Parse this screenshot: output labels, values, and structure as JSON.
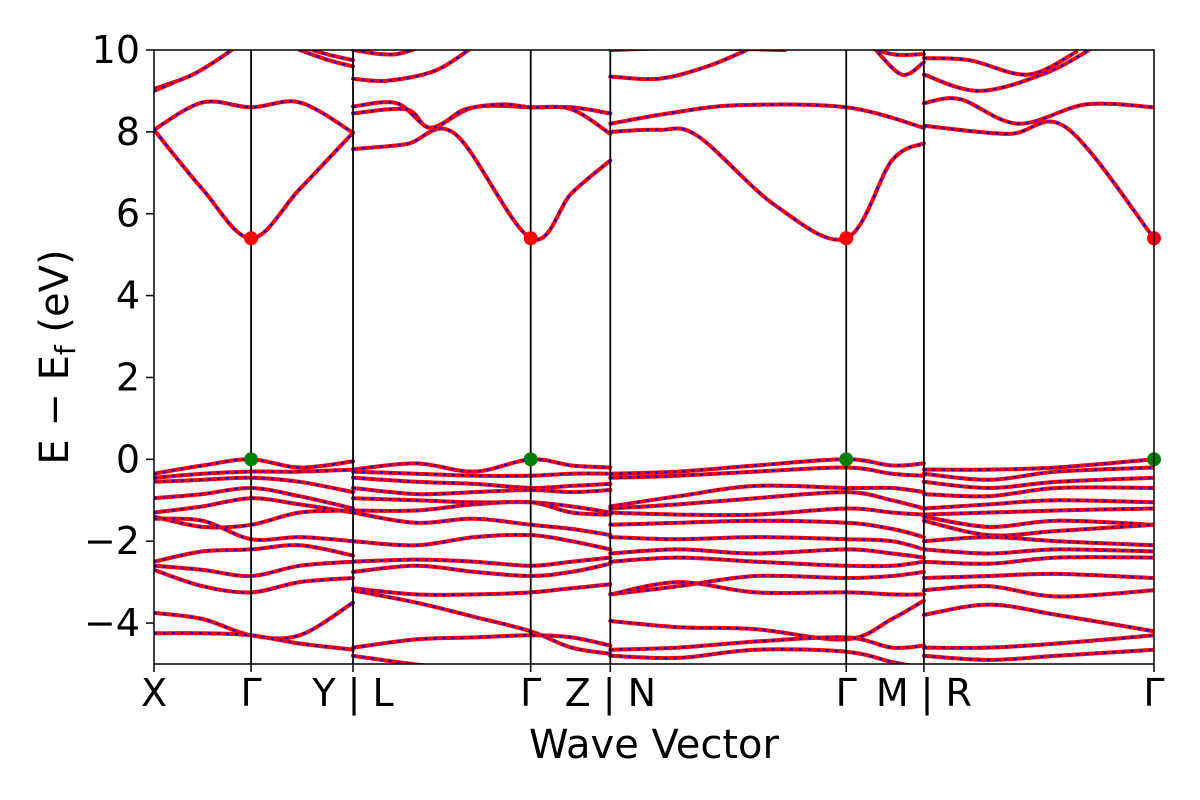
{
  "chart_data": {
    "type": "line",
    "title": "",
    "xlabel": "Wave Vector",
    "ylabel_main": "E − E",
    "ylabel_sub": "f",
    "ylabel_unit": " (eV)",
    "ylim": [
      -5,
      10
    ],
    "yticks": [
      {
        "value": -4,
        "label": "−4"
      },
      {
        "value": -2,
        "label": "−2"
      },
      {
        "value": 0,
        "label": "0"
      },
      {
        "value": 2,
        "label": "2"
      },
      {
        "value": 4,
        "label": "4"
      },
      {
        "value": 6,
        "label": "6"
      },
      {
        "value": 8,
        "label": "8"
      },
      {
        "value": 10,
        "label": "10"
      }
    ],
    "xlim": [
      0,
      10.3
    ],
    "kpoints": [
      {
        "pos": 0.0,
        "label": "X"
      },
      {
        "pos": 1.0,
        "label": "Γ"
      },
      {
        "pos": 2.05,
        "label": "Y | L"
      },
      {
        "pos": 3.88,
        "label": "Γ"
      },
      {
        "pos": 4.7,
        "label": "Z | N"
      },
      {
        "pos": 7.13,
        "label": "Γ"
      },
      {
        "pos": 7.93,
        "label": "M | R"
      },
      {
        "pos": 10.3,
        "label": "Γ"
      }
    ],
    "segment_boundaries": [
      2.05,
      4.7,
      7.93
    ],
    "gamma_lines": [
      1.0,
      3.88,
      7.13
    ],
    "colors": {
      "band_solid": "#ff0000",
      "band_dashed": "#0000ff",
      "cbm_marker": "#ff0000",
      "vbm_marker": "#008000"
    },
    "cbm_points": [
      {
        "x": 1.0,
        "y": 5.4
      },
      {
        "x": 3.88,
        "y": 5.4
      },
      {
        "x": 7.13,
        "y": 5.4
      },
      {
        "x": 10.3,
        "y": 5.4
      }
    ],
    "vbm_points": [
      {
        "x": 1.0,
        "y": 0.0
      },
      {
        "x": 3.88,
        "y": 0.0
      },
      {
        "x": 7.13,
        "y": 0.0
      },
      {
        "x": 10.3,
        "y": 0.0
      }
    ],
    "bands": [
      {
        "x": [
          0,
          0.5,
          1.0,
          1.5,
          2.05
        ],
        "y": [
          8.05,
          6.6,
          5.4,
          6.6,
          7.98
        ]
      },
      {
        "x": [
          0,
          0.5,
          1.0,
          1.5,
          2.05
        ],
        "y": [
          8.05,
          8.72,
          8.6,
          8.72,
          7.98
        ]
      },
      {
        "x": [
          0,
          0.4,
          0.8,
          1.0
        ],
        "y": [
          9.05,
          9.4,
          10.0,
          10.4
        ]
      },
      {
        "x": [
          0,
          0.2
        ],
        "y": [
          9.0,
          9.2
        ]
      },
      {
        "x": [
          1.5,
          1.8,
          2.05
        ],
        "y": [
          10.0,
          9.75,
          9.6
        ]
      },
      {
        "x": [
          1.3,
          1.7,
          2.05
        ],
        "y": [
          10.3,
          9.95,
          9.75
        ]
      },
      {
        "x": [
          2.05,
          2.6,
          3.1,
          3.88,
          4.3,
          4.7
        ],
        "y": [
          7.58,
          7.7,
          7.95,
          5.4,
          6.5,
          7.3
        ]
      },
      {
        "x": [
          2.05,
          2.6,
          2.85,
          3.3,
          3.88,
          4.3,
          4.7
        ],
        "y": [
          8.45,
          8.55,
          8.1,
          8.6,
          8.6,
          8.55,
          7.95
        ]
      },
      {
        "x": [
          2.05,
          2.5,
          2.85,
          3.2,
          3.6,
          3.88,
          4.3,
          4.7
        ],
        "y": [
          8.62,
          8.7,
          8.1,
          8.55,
          8.67,
          8.6,
          8.6,
          8.45
        ]
      },
      {
        "x": [
          2.05,
          2.4,
          2.9,
          3.3
        ],
        "y": [
          9.3,
          9.25,
          9.5,
          10.1
        ]
      },
      {
        "x": [
          2.05,
          2.5,
          3.0,
          3.4
        ],
        "y": [
          10.0,
          9.9,
          10.3,
          10.5
        ]
      },
      {
        "x": [
          4.7,
          5.2,
          5.6,
          6.4,
          7.13,
          7.6,
          7.93
        ],
        "y": [
          8.0,
          8.05,
          7.9,
          6.2,
          5.4,
          7.3,
          7.72
        ]
      },
      {
        "x": [
          4.7,
          5.3,
          6.0,
          7.13,
          7.93
        ],
        "y": [
          8.2,
          8.45,
          8.65,
          8.6,
          8.1
        ]
      },
      {
        "x": [
          4.7,
          5.2,
          5.7,
          6.2
        ],
        "y": [
          9.35,
          9.3,
          9.6,
          10.1
        ]
      },
      {
        "x": [
          4.7,
          5.5,
          6.5
        ],
        "y": [
          10.0,
          10.05,
          10.0
        ]
      },
      {
        "x": [
          7.4,
          7.7,
          7.93
        ],
        "y": [
          10.1,
          9.4,
          9.7
        ]
      },
      {
        "x": [
          7.2,
          7.6,
          7.93
        ],
        "y": [
          10.2,
          9.9,
          9.9
        ]
      },
      {
        "x": [
          7.93,
          8.8,
          9.4,
          10.3,
          10.3
        ],
        "y": [
          8.15,
          7.95,
          8.1,
          5.4,
          5.4
        ]
      },
      {
        "x": [
          7.93,
          8.3,
          8.9,
          9.6,
          10.3
        ],
        "y": [
          8.7,
          8.8,
          8.2,
          8.67,
          8.6
        ]
      },
      {
        "x": [
          7.93,
          8.5,
          9.2,
          9.7
        ],
        "y": [
          9.4,
          9.0,
          9.45,
          10.1
        ]
      },
      {
        "x": [
          7.93,
          8.4,
          9.0,
          9.5
        ],
        "y": [
          9.8,
          9.75,
          9.4,
          9.95
        ]
      },
      {
        "x": [
          0,
          0.5,
          1.0,
          1.5,
          2.05
        ],
        "y": [
          -0.35,
          -0.15,
          0.0,
          -0.2,
          -0.05
        ]
      },
      {
        "x": [
          0,
          0.5,
          1.0,
          1.5,
          2.05
        ],
        "y": [
          -0.45,
          -0.35,
          -0.3,
          -0.3,
          -0.25
        ]
      },
      {
        "x": [
          0,
          0.5,
          1.0,
          1.5,
          2.05
        ],
        "y": [
          -0.55,
          -0.5,
          -0.45,
          -0.55,
          -0.8
        ]
      },
      {
        "x": [
          0,
          0.5,
          1.0,
          1.5,
          2.05
        ],
        "y": [
          -0.95,
          -0.85,
          -0.7,
          -0.9,
          -1.2
        ]
      },
      {
        "x": [
          0,
          0.5,
          1.0,
          1.5,
          2.05
        ],
        "y": [
          -1.3,
          -1.15,
          -0.95,
          -1.1,
          -1.3
        ]
      },
      {
        "x": [
          0,
          0.5,
          1.0,
          1.5,
          2.05
        ],
        "y": [
          -1.4,
          -1.65,
          -1.6,
          -1.3,
          -1.25
        ]
      },
      {
        "x": [
          0,
          0.5,
          1.0,
          1.5,
          2.05
        ],
        "y": [
          -1.45,
          -1.5,
          -1.95,
          -1.9,
          -2.0
        ]
      },
      {
        "x": [
          0,
          0.5,
          1.0,
          1.5,
          2.05
        ],
        "y": [
          -2.5,
          -2.25,
          -2.2,
          -2.1,
          -2.35
        ]
      },
      {
        "x": [
          0,
          0.5,
          1.0,
          1.5,
          2.05
        ],
        "y": [
          -2.6,
          -2.7,
          -2.85,
          -2.6,
          -2.5
        ]
      },
      {
        "x": [
          0,
          0.5,
          1.0,
          1.5,
          2.05
        ],
        "y": [
          -2.7,
          -3.1,
          -3.25,
          -3.0,
          -2.9
        ]
      },
      {
        "x": [
          0,
          0.5,
          1.0,
          1.5,
          2.05
        ],
        "y": [
          -3.75,
          -3.9,
          -4.3,
          -4.3,
          -3.5
        ]
      },
      {
        "x": [
          0,
          0.5,
          1.0,
          1.5,
          2.05
        ],
        "y": [
          -4.25,
          -4.25,
          -4.3,
          -4.5,
          -4.65
        ]
      },
      {
        "x": [
          2.05,
          2.7,
          3.3,
          3.88,
          4.3,
          4.7
        ],
        "y": [
          -0.25,
          -0.1,
          -0.3,
          0.0,
          -0.15,
          -0.2
        ]
      },
      {
        "x": [
          2.05,
          2.7,
          3.3,
          3.88,
          4.3,
          4.7
        ],
        "y": [
          -0.3,
          -0.35,
          -0.4,
          -0.4,
          -0.35,
          -0.35
        ]
      },
      {
        "x": [
          2.05,
          2.7,
          3.3,
          3.88,
          4.3,
          4.7
        ],
        "y": [
          -0.45,
          -0.55,
          -0.6,
          -0.7,
          -0.65,
          -0.6
        ]
      },
      {
        "x": [
          2.05,
          2.7,
          3.3,
          3.88,
          4.3,
          4.7
        ],
        "y": [
          -0.7,
          -0.85,
          -0.8,
          -0.75,
          -0.8,
          -0.75
        ]
      },
      {
        "x": [
          2.05,
          2.7,
          3.3,
          3.88,
          4.3,
          4.7
        ],
        "y": [
          -0.95,
          -1.0,
          -1.05,
          -1.05,
          -1.15,
          -1.3
        ]
      },
      {
        "x": [
          2.05,
          2.7,
          3.3,
          3.88,
          4.3,
          4.7
        ],
        "y": [
          -1.25,
          -1.25,
          -1.1,
          -1.05,
          -1.3,
          -1.35
        ]
      },
      {
        "x": [
          2.05,
          2.7,
          3.3,
          3.88,
          4.3,
          4.7
        ],
        "y": [
          -1.3,
          -1.55,
          -1.45,
          -1.6,
          -1.7,
          -1.85
        ]
      },
      {
        "x": [
          2.05,
          2.7,
          3.3,
          3.88,
          4.3,
          4.7
        ],
        "y": [
          -2.0,
          -2.1,
          -1.9,
          -1.85,
          -2.0,
          -2.2
        ]
      },
      {
        "x": [
          2.05,
          2.7,
          3.3,
          3.88,
          4.3,
          4.7
        ],
        "y": [
          -2.5,
          -2.45,
          -2.5,
          -2.6,
          -2.5,
          -2.4
        ]
      },
      {
        "x": [
          2.05,
          2.7,
          3.3,
          3.88,
          4.3,
          4.7
        ],
        "y": [
          -2.75,
          -2.6,
          -2.75,
          -2.85,
          -2.75,
          -2.55
        ]
      },
      {
        "x": [
          2.05,
          2.7,
          3.3,
          3.88,
          4.3,
          4.7
        ],
        "y": [
          -3.15,
          -3.3,
          -3.3,
          -3.25,
          -3.15,
          -3.05
        ]
      },
      {
        "x": [
          2.05,
          2.7,
          3.3,
          3.88,
          4.3,
          4.7
        ],
        "y": [
          -3.2,
          -3.5,
          -3.85,
          -4.2,
          -4.6,
          -4.75
        ]
      },
      {
        "x": [
          2.05,
          2.7,
          3.3,
          3.88,
          4.3,
          4.7
        ],
        "y": [
          -4.6,
          -4.4,
          -4.35,
          -4.3,
          -4.35,
          -4.55
        ]
      },
      {
        "x": [
          2.05,
          2.5,
          3.0
        ],
        "y": [
          -4.8,
          -4.95,
          -5.1
        ]
      },
      {
        "x": [
          4.7,
          5.4,
          6.2,
          7.13,
          7.6,
          7.93
        ],
        "y": [
          -0.35,
          -0.3,
          -0.15,
          0.0,
          -0.15,
          -0.1
        ]
      },
      {
        "x": [
          4.7,
          5.4,
          6.2,
          7.13,
          7.6,
          7.93
        ],
        "y": [
          -0.45,
          -0.4,
          -0.3,
          -0.2,
          -0.35,
          -0.4
        ]
      },
      {
        "x": [
          4.7,
          5.4,
          6.2,
          7.13,
          7.6,
          7.93
        ],
        "y": [
          -1.15,
          -0.9,
          -0.65,
          -0.7,
          -0.7,
          -0.8
        ]
      },
      {
        "x": [
          4.7,
          5.4,
          6.2,
          7.13,
          7.6,
          7.93
        ],
        "y": [
          -1.2,
          -1.1,
          -0.95,
          -0.8,
          -1.0,
          -1.2
        ]
      },
      {
        "x": [
          4.7,
          5.4,
          6.2,
          7.13,
          7.6,
          7.93
        ],
        "y": [
          -1.3,
          -1.35,
          -1.35,
          -1.2,
          -1.3,
          -1.35
        ]
      },
      {
        "x": [
          4.7,
          5.4,
          6.2,
          7.13,
          7.6,
          7.93
        ],
        "y": [
          -1.6,
          -1.55,
          -1.5,
          -1.55,
          -1.7,
          -1.9
        ]
      },
      {
        "x": [
          4.7,
          5.4,
          6.2,
          7.13,
          7.6,
          7.93
        ],
        "y": [
          -1.9,
          -1.95,
          -1.9,
          -1.95,
          -2.0,
          -2.2
        ]
      },
      {
        "x": [
          4.7,
          5.4,
          6.2,
          7.13,
          7.6,
          7.93
        ],
        "y": [
          -2.3,
          -2.2,
          -2.3,
          -2.2,
          -2.3,
          -2.4
        ]
      },
      {
        "x": [
          4.7,
          5.4,
          6.2,
          7.13,
          7.6,
          7.93
        ],
        "y": [
          -2.5,
          -2.4,
          -2.5,
          -2.6,
          -2.6,
          -2.5
        ]
      },
      {
        "x": [
          4.7,
          5.4,
          6.2,
          7.13,
          7.6,
          7.93
        ],
        "y": [
          -3.3,
          -3.1,
          -2.85,
          -2.9,
          -2.85,
          -2.75
        ]
      },
      {
        "x": [
          4.7,
          5.4,
          6.2,
          7.13,
          7.6,
          7.93
        ],
        "y": [
          -3.3,
          -3.0,
          -3.25,
          -3.25,
          -3.3,
          -3.3
        ]
      },
      {
        "x": [
          4.7,
          5.4,
          6.2,
          7.13,
          7.6,
          7.93
        ],
        "y": [
          -3.95,
          -4.1,
          -4.15,
          -4.4,
          -3.9,
          -3.45
        ]
      },
      {
        "x": [
          4.7,
          5.4,
          6.2,
          7.13,
          7.6,
          7.93
        ],
        "y": [
          -4.65,
          -4.6,
          -4.45,
          -4.35,
          -4.6,
          -4.55
        ]
      },
      {
        "x": [
          4.7,
          5.4,
          6.2,
          7.13,
          7.6,
          7.93
        ],
        "y": [
          -4.8,
          -4.85,
          -4.65,
          -4.7,
          -4.95,
          -5.1
        ]
      },
      {
        "x": [
          7.93,
          8.6,
          9.3,
          10.3
        ],
        "y": [
          -0.25,
          -0.25,
          -0.2,
          0.0
        ]
      },
      {
        "x": [
          7.93,
          8.6,
          9.3,
          10.3
        ],
        "y": [
          -0.35,
          -0.5,
          -0.3,
          -0.2
        ]
      },
      {
        "x": [
          7.93,
          8.6,
          9.3,
          10.3
        ],
        "y": [
          -0.55,
          -0.7,
          -0.55,
          -0.45
        ]
      },
      {
        "x": [
          7.93,
          8.6,
          9.3,
          10.3
        ],
        "y": [
          -0.85,
          -0.9,
          -0.7,
          -0.7
        ]
      },
      {
        "x": [
          7.93,
          8.6,
          9.3,
          10.3
        ],
        "y": [
          -1.2,
          -1.1,
          -1.0,
          -1.05
        ]
      },
      {
        "x": [
          7.93,
          8.6,
          9.3,
          10.3
        ],
        "y": [
          -1.35,
          -1.3,
          -1.25,
          -1.2
        ]
      },
      {
        "x": [
          7.93,
          8.6,
          9.3,
          10.3
        ],
        "y": [
          -1.4,
          -1.65,
          -1.5,
          -1.6
        ]
      },
      {
        "x": [
          7.93,
          8.6,
          9.3,
          10.3
        ],
        "y": [
          -1.5,
          -1.85,
          -1.75,
          -1.6
        ]
      },
      {
        "x": [
          7.93,
          8.6,
          9.3,
          10.3
        ],
        "y": [
          -2.0,
          -1.9,
          -2.0,
          -2.1
        ]
      },
      {
        "x": [
          7.93,
          8.6,
          9.3,
          10.3
        ],
        "y": [
          -2.2,
          -2.3,
          -2.2,
          -2.25
        ]
      },
      {
        "x": [
          7.93,
          8.6,
          9.3,
          10.3
        ],
        "y": [
          -2.5,
          -2.55,
          -2.4,
          -2.4
        ]
      },
      {
        "x": [
          7.93,
          8.6,
          9.3,
          10.3
        ],
        "y": [
          -2.9,
          -2.85,
          -2.8,
          -2.9
        ]
      },
      {
        "x": [
          7.93,
          8.6,
          9.3,
          10.3
        ],
        "y": [
          -3.2,
          -3.1,
          -3.35,
          -3.2
        ]
      },
      {
        "x": [
          7.93,
          8.6,
          9.3,
          10.3
        ],
        "y": [
          -3.8,
          -3.55,
          -3.8,
          -4.2
        ]
      },
      {
        "x": [
          7.93,
          8.6,
          9.3,
          10.3
        ],
        "y": [
          -4.6,
          -4.6,
          -4.5,
          -4.3
        ]
      },
      {
        "x": [
          7.93,
          8.6,
          9.3,
          10.3
        ],
        "y": [
          -4.8,
          -4.9,
          -4.8,
          -4.65
        ]
      }
    ]
  }
}
